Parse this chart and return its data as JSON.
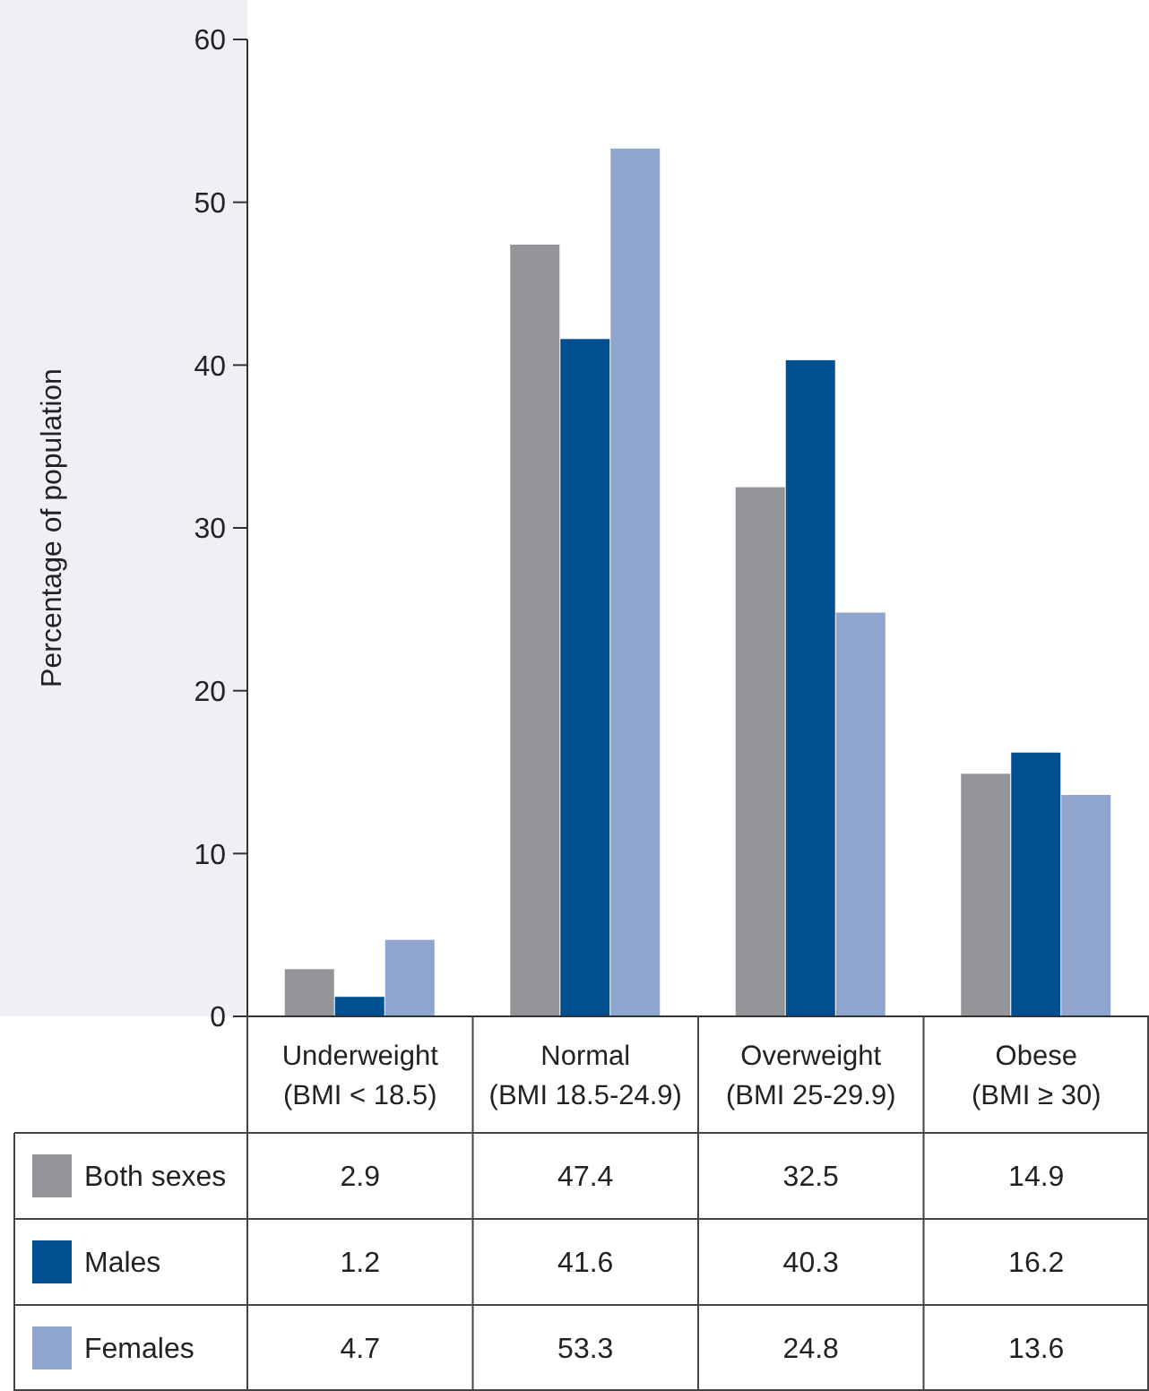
{
  "chart_data": {
    "type": "bar",
    "ylabel": "Percentage of population",
    "categories": [
      "Underweight\n(BMI < 18.5)",
      "Normal\n(BMI 18.5-24.9)",
      "Overweight\n(BMI 25-29.9)",
      "Obese\n(BMI ≥ 30)"
    ],
    "series": [
      {
        "name": "Both sexes",
        "color": "#939598",
        "values": [
          2.9,
          47.4,
          32.5,
          14.9
        ]
      },
      {
        "name": "Males",
        "color": "#004f91",
        "values": [
          1.2,
          41.6,
          40.3,
          16.2
        ]
      },
      {
        "name": "Females",
        "color": "#8fa5cd",
        "values": [
          4.7,
          53.3,
          24.8,
          13.6
        ]
      }
    ],
    "ylim": [
      0,
      60
    ],
    "yticks": [
      0,
      10,
      20,
      30,
      40,
      50,
      60
    ],
    "grid": false,
    "data_labels": true,
    "legend": "bottom"
  }
}
